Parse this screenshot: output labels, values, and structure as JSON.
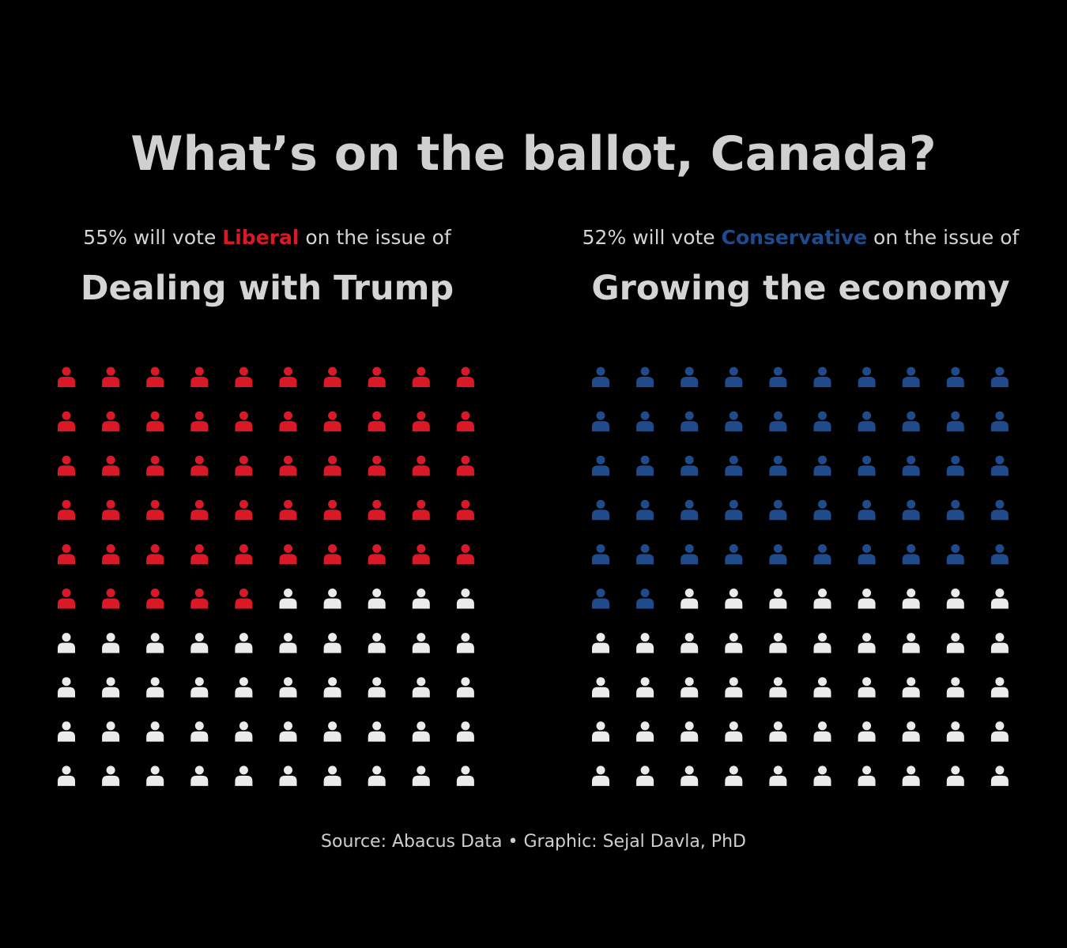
{
  "title": "What’s on the ballot, Canada?",
  "panels": [
    {
      "pct_text": "55%",
      "pre_text": "will vote",
      "party": "Liberal",
      "post_text": "on the issue of",
      "issue": "Dealing with Trump",
      "party_color": "#d91a26"
    },
    {
      "pct_text": "52%",
      "pre_text": "will vote",
      "party": "Conservative",
      "post_text": "on the issue of",
      "issue": "Growing the economy",
      "party_color": "#1f4a8c"
    }
  ],
  "source": "Source: Abacus Data • Graphic: Sejal Davla, PhD",
  "icon": "person-icon",
  "chart_data": [
    {
      "type": "waffle",
      "grid": [
        10,
        10
      ],
      "total": 100,
      "highlighted": 55,
      "highlight_color": "#d91a26",
      "base_color": "#ebebeb"
    },
    {
      "type": "waffle",
      "grid": [
        10,
        10
      ],
      "total": 100,
      "highlighted": 52,
      "highlight_color": "#1f4a8c",
      "base_color": "#ebebeb"
    }
  ]
}
